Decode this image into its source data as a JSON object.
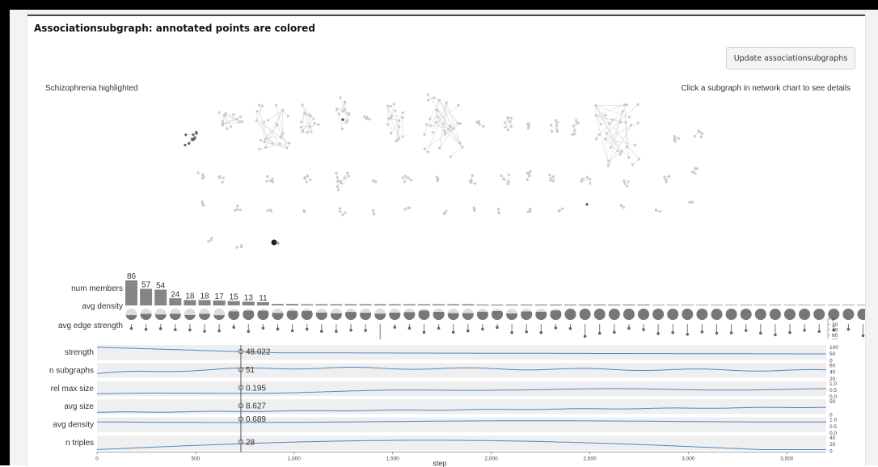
{
  "panel": {
    "title": "Associationsubgraph: annotated points are colored",
    "update_button": "Update associationsubgraphs",
    "highlight_label": "Schizophrenia highlighted",
    "click_hint": "Click a subgraph in network chart to see details"
  },
  "upset": {
    "row_labels": [
      "num members",
      "avg density",
      "avg edge strength"
    ],
    "member_counts": [
      86,
      57,
      54,
      24,
      18,
      18,
      17,
      15,
      13,
      11
    ],
    "strength_axis_ticks": [
      "0",
      "20",
      "40",
      "60",
      "80"
    ]
  },
  "trends": {
    "rows": [
      {
        "label": "strength",
        "value": "48.022",
        "ticks": [
          "100",
          "50",
          "0"
        ]
      },
      {
        "label": "n subgraphs",
        "value": "51",
        "ticks": [
          "60",
          "40",
          "20"
        ]
      },
      {
        "label": "rel max size",
        "value": "0.195",
        "ticks": [
          "1.0",
          "0.5",
          "0.0"
        ]
      },
      {
        "label": "avg size",
        "value": "8.627",
        "ticks": [
          "50",
          "0"
        ]
      },
      {
        "label": "avg density",
        "value": "0.689",
        "ticks": [
          "1.0",
          "0.5",
          "0.0"
        ]
      },
      {
        "label": "n triples",
        "value": "28",
        "ticks": [
          "40",
          "20",
          "0"
        ]
      }
    ],
    "x_ticks": [
      "0",
      "500",
      "1,000",
      "1,500",
      "2,000",
      "2,500",
      "3,000",
      "3,500"
    ],
    "x_label": "step",
    "x_max": 3700,
    "selected_step": 730
  },
  "colors": {
    "accent": "#4f86c6",
    "bar": "#808080",
    "panel_border": "#3c4a56"
  }
}
